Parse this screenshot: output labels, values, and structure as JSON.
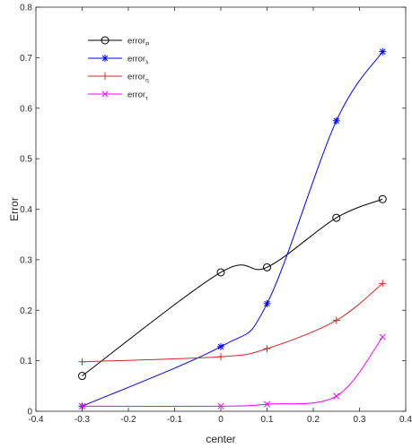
{
  "chart_data": {
    "type": "line",
    "title": "",
    "xlabel": "center",
    "ylabel": "Error",
    "xlim": [
      -0.4,
      0.4
    ],
    "ylim": [
      0,
      0.8
    ],
    "xticks": [
      "-0.4",
      "-0.3",
      "-0.2",
      "-0.1",
      "0",
      "0.1",
      "0.2",
      "0.3",
      "0.4"
    ],
    "yticks": [
      "0",
      "0.1",
      "0.2",
      "0.3",
      "0.4",
      "0.5",
      "0.6",
      "0.7",
      "0.8"
    ],
    "grid": false,
    "legend_position": "top-left",
    "x": [
      -0.3,
      0,
      0.1,
      0.25,
      0.35
    ],
    "series": [
      {
        "name": "error",
        "sub": "P",
        "color": "#000000",
        "marker": "circle",
        "values": [
          0.07,
          0.275,
          0.285,
          0.383,
          0.42
        ]
      },
      {
        "name": "error",
        "sub": "λ",
        "color": "#0000ff",
        "marker": "asterisk",
        "values": [
          0.01,
          0.128,
          0.213,
          0.575,
          0.712
        ]
      },
      {
        "name": "error",
        "sub": "η",
        "color": "#d62728",
        "marker": "plus",
        "values": [
          0.098,
          0.108,
          0.124,
          0.18,
          0.253
        ]
      },
      {
        "name": "error",
        "sub": "τ",
        "color": "#ff00ff",
        "marker": "cross",
        "values": [
          0.01,
          0.01,
          0.014,
          0.03,
          0.147
        ]
      }
    ]
  }
}
